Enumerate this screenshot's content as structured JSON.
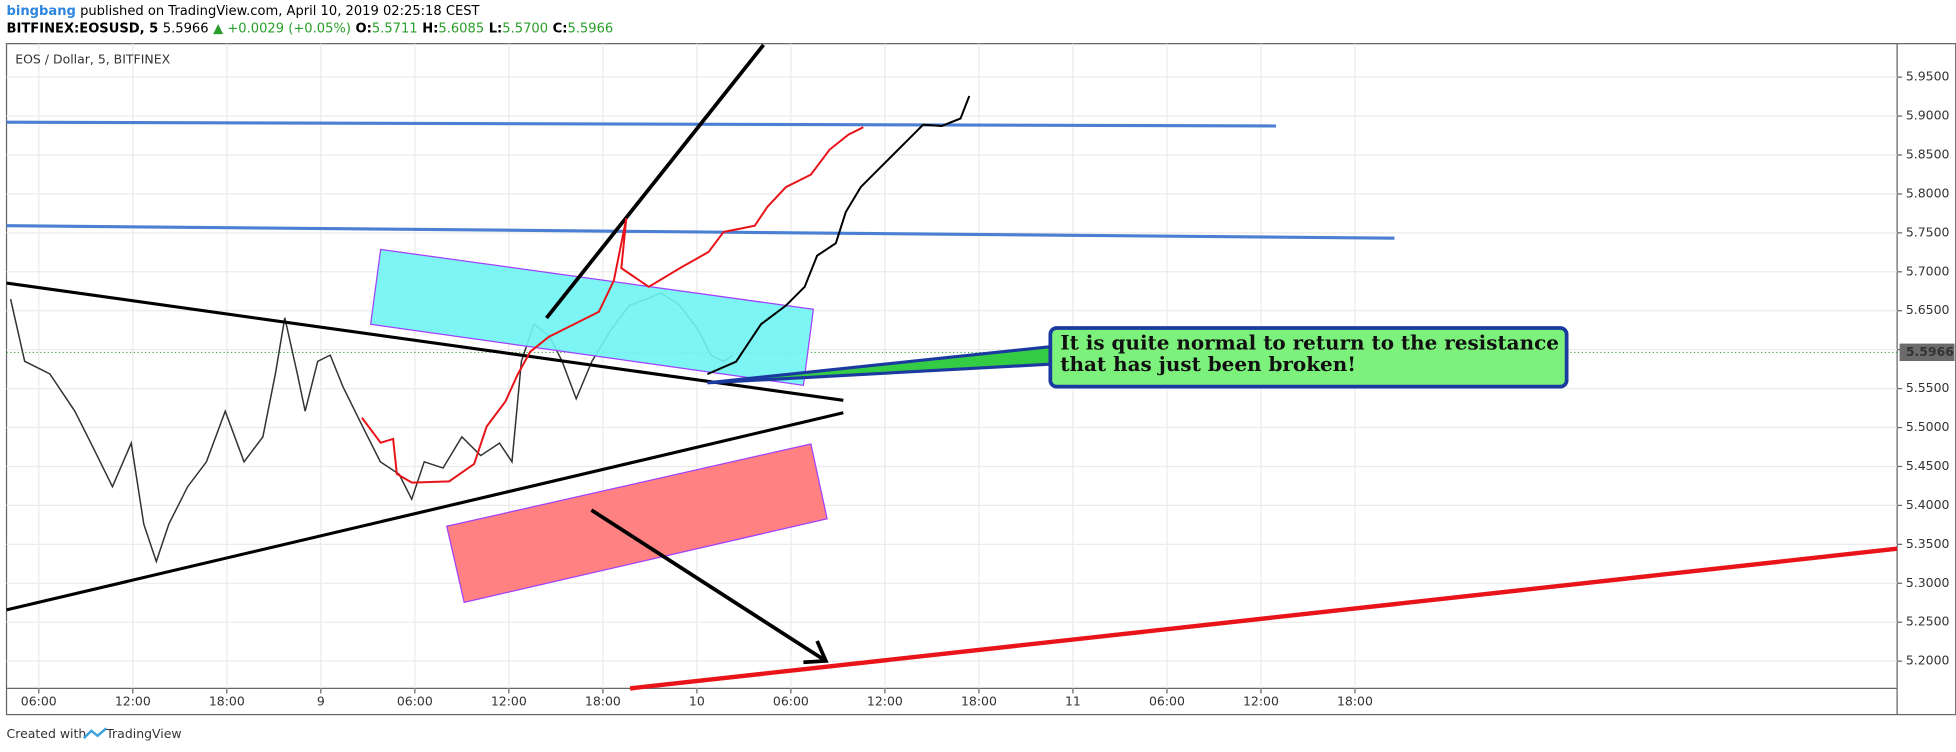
{
  "header": {
    "author": "bingbang",
    "published": "published on TradingView.com, April 10, 2019 02:25:18 CEST",
    "symbol": "BITFINEX:EOSUSD, 5",
    "last": "5.5966",
    "change": "▲ +0.0029 (+0.05%)",
    "open_label": "O:",
    "open": "5.5711",
    "high_label": "H:",
    "high": "5.6085",
    "low_label": "L:",
    "low": "5.5700",
    "close_label": "C:",
    "close": "5.5966"
  },
  "chart_data": {
    "type": "line",
    "title": "EOS / Dollar, 5, BITFINEX",
    "x": [
      4.2,
      5.1,
      6.7,
      8.3,
      9.5,
      10.7,
      11.9,
      12.7,
      13.5,
      14.3,
      15.5,
      16.7,
      17.9,
      19.1,
      20.3,
      21.1,
      21.7,
      22.5,
      23.0,
      23.8,
      24.6,
      25.4,
      26.6,
      27.8,
      29.0,
      29.8,
      30.6,
      31.8,
      33.0,
      34.2,
      35.4,
      36.2,
      36.8,
      37.6,
      38.6,
      39.4,
      40.3,
      41.3,
      42.5,
      43.7,
      44.8,
      45.7,
      46.9,
      48.1,
      48.9,
      49.7,
      50.3
    ],
    "series": [
      {
        "name": "EOSUSD",
        "color": "#333333",
        "values": [
          5.665,
          5.585,
          5.569,
          5.521,
          5.473,
          5.424,
          5.48,
          5.376,
          5.328,
          5.376,
          5.424,
          5.456,
          5.521,
          5.456,
          5.488,
          5.569,
          5.641,
          5.569,
          5.521,
          5.585,
          5.593,
          5.553,
          5.504,
          5.456,
          5.44,
          5.408,
          5.456,
          5.448,
          5.488,
          5.464,
          5.48,
          5.456,
          5.585,
          5.633,
          5.617,
          5.585,
          5.537,
          5.585,
          5.625,
          5.657,
          5.665,
          5.673,
          5.657,
          5.625,
          5.593,
          5.585,
          5.593
        ]
      }
    ],
    "xlim": [
      3.94,
      124.6
    ],
    "ylim": [
      5.165,
      5.993
    ],
    "xticks": [
      {
        "value": 6,
        "label": "06:00"
      },
      {
        "value": 12,
        "label": "12:00"
      },
      {
        "value": 18,
        "label": "18:00"
      },
      {
        "value": 24,
        "label": "9"
      },
      {
        "value": 30,
        "label": "06:00"
      },
      {
        "value": 36,
        "label": "12:00"
      },
      {
        "value": 42,
        "label": "18:00"
      },
      {
        "value": 48,
        "label": "10"
      },
      {
        "value": 54,
        "label": "06:00"
      },
      {
        "value": 60,
        "label": "12:00"
      },
      {
        "value": 66,
        "label": "18:00"
      },
      {
        "value": 72,
        "label": "11"
      },
      {
        "value": 78,
        "label": "06:00"
      },
      {
        "value": 84,
        "label": "12:00"
      },
      {
        "value": 90,
        "label": "18:00"
      }
    ],
    "yticks": [
      {
        "value": 5.2,
        "label": "5.2000"
      },
      {
        "value": 5.25,
        "label": "5.2500"
      },
      {
        "value": 5.3,
        "label": "5.3000"
      },
      {
        "value": 5.35,
        "label": "5.3500"
      },
      {
        "value": 5.4,
        "label": "5.4000"
      },
      {
        "value": 5.45,
        "label": "5.4500"
      },
      {
        "value": 5.5,
        "label": "5.5000"
      },
      {
        "value": 5.55,
        "label": "5.5500"
      },
      {
        "value": 5.6,
        "label": "5.6000"
      },
      {
        "value": 5.65,
        "label": "5.6500"
      },
      {
        "value": 5.7,
        "label": "5.7000"
      },
      {
        "value": 5.75,
        "label": "5.7500"
      },
      {
        "value": 5.8,
        "label": "5.8000"
      },
      {
        "value": 5.85,
        "label": "5.8500"
      },
      {
        "value": 5.9,
        "label": "5.9000"
      },
      {
        "value": 5.95,
        "label": "5.9500"
      }
    ],
    "grid": true,
    "last_price": {
      "value": 5.5966,
      "label": "5.5966"
    },
    "annotation": [
      "It is quite normal to return to the resistance",
      "that has just been broken!"
    ]
  },
  "footer": {
    "created": "Created with",
    "brand": "TradingView"
  }
}
